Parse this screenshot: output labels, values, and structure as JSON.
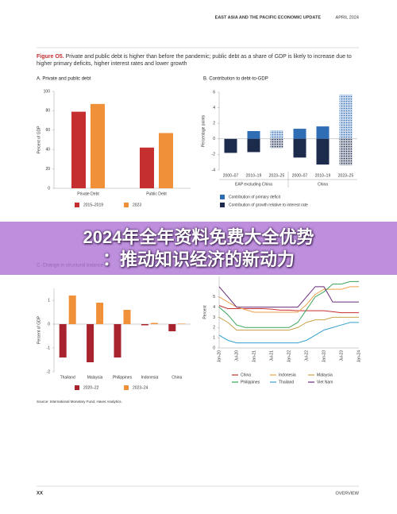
{
  "header": {
    "title": "EAST ASIA AND THE PACIFIC ECONOMIC UPDATE",
    "date": "APRIL 2024"
  },
  "figure": {
    "label": "Figure O5.",
    "caption": "Private and public debt is higher than before the pandemic; public debt as a share of GDP is likely to increase due to higher primary deficits, higher interest rates and lower growth"
  },
  "chart_data": [
    {
      "type": "bar",
      "title": "A. Private and public debt",
      "y_label": "Percent of GDP",
      "categories": [
        "Private Debt",
        "Public Debt"
      ],
      "series": [
        {
          "name": "2015–2019",
          "color": "#c62f2f",
          "values": [
            79,
            42
          ]
        },
        {
          "name": "2023",
          "color": "#f0913a",
          "values": [
            87,
            57
          ]
        }
      ],
      "ylim": [
        0,
        100
      ],
      "yticks": [
        0,
        20,
        40,
        60,
        80,
        100
      ]
    },
    {
      "type": "stacked_bar",
      "title": "B. Contribution to debt-to-GDP",
      "y_label": "Percentage points",
      "categories": [
        "2000–07",
        "2010–19",
        "2023–25",
        "2000–07",
        "2010–19",
        "2023–25"
      ],
      "groups": [
        "EAP excluding China",
        "China"
      ],
      "hatched": [
        false,
        false,
        true,
        false,
        false,
        true
      ],
      "series": [
        {
          "name": "Contribution of primary deficit",
          "color": "#2f6db5",
          "values": [
            0,
            1.0,
            1.1,
            1.3,
            1.6,
            5.7
          ]
        },
        {
          "name": "Contribution of growth relative to interest rate",
          "color": "#1c2b4c",
          "values": [
            -1.8,
            -1.7,
            -1.2,
            -2.4,
            -3.3,
            -3.4
          ]
        }
      ],
      "ylim": [
        -4,
        6
      ],
      "yticks": [
        -4,
        -2,
        0,
        2,
        4,
        6
      ]
    },
    {
      "type": "bar",
      "title": "C. Change in structural balance",
      "y_label": "Percent of GDP",
      "categories": [
        "Thailand",
        "Malaysia",
        "Philippines",
        "Indonesia",
        "China"
      ],
      "series": [
        {
          "name": "2020–22",
          "color": "#a8232d",
          "values": [
            -1.4,
            -1.6,
            -1.4,
            -0.05,
            -0.3
          ]
        },
        {
          "name": "2023–24",
          "color": "#f0913a",
          "values": [
            1.2,
            0.9,
            0.6,
            0.05,
            0.02
          ]
        }
      ],
      "ylim": [
        -2,
        1.5
      ],
      "yticks": [
        -2,
        -1,
        0,
        1
      ]
    },
    {
      "type": "line",
      "y_label": "Percent",
      "categories": [
        "Jan-20",
        null,
        "Jul-20",
        null,
        "Jan-21",
        null,
        "Jul-21",
        null,
        "Jan-22",
        null,
        "Jul-22",
        null,
        "Jan-23",
        null,
        "Jul-23",
        null,
        "Jan-24"
      ],
      "series": [
        {
          "name": "China",
          "color": "#c62f2f",
          "values": [
            4.15,
            3.85,
            3.85,
            3.85,
            3.85,
            3.85,
            3.8,
            3.7,
            3.7,
            3.65,
            3.65,
            3.65,
            3.65,
            3.55,
            3.45,
            3.45,
            3.45
          ]
        },
        {
          "name": "Indonesia",
          "color": "#f0a04b",
          "values": [
            5.0,
            4.5,
            4.0,
            3.75,
            3.5,
            3.5,
            3.5,
            3.5,
            3.5,
            3.5,
            4.25,
            5.25,
            5.75,
            5.75,
            5.75,
            6.0,
            6.0
          ]
        },
        {
          "name": "Malaysia",
          "color": "#c9a24a",
          "values": [
            3.0,
            2.5,
            1.75,
            1.75,
            1.75,
            1.75,
            1.75,
            1.75,
            1.75,
            2.0,
            2.5,
            2.75,
            2.75,
            3.0,
            3.0,
            3.0,
            3.0
          ]
        },
        {
          "name": "Philippines",
          "color": "#3aa55a",
          "values": [
            4.0,
            3.25,
            2.25,
            2.0,
            2.0,
            2.0,
            2.0,
            2.0,
            2.0,
            2.5,
            3.75,
            5.0,
            5.5,
            6.25,
            6.25,
            6.5,
            6.5
          ]
        },
        {
          "name": "Thailand",
          "color": "#36a0d0",
          "values": [
            1.25,
            0.75,
            0.5,
            0.5,
            0.5,
            0.5,
            0.5,
            0.5,
            0.5,
            0.5,
            0.75,
            1.25,
            1.75,
            2.0,
            2.25,
            2.5,
            2.5
          ]
        },
        {
          "name": "Viet Nam",
          "color": "#6b2c7a",
          "values": [
            6.0,
            5.0,
            4.0,
            4.0,
            4.0,
            4.0,
            4.0,
            4.0,
            4.0,
            4.0,
            5.0,
            6.0,
            6.0,
            4.5,
            4.5,
            4.5,
            4.5
          ]
        }
      ],
      "ylim": [
        0,
        7
      ],
      "yticks": [
        0,
        1,
        2,
        3,
        4,
        5
      ]
    }
  ],
  "source": "Source: International Monetary Fund, Haver Analytics.",
  "banner": {
    "lines": [
      "2024年全年资料免费大全优势",
      "：推动知识经济的新动力"
    ]
  },
  "footer": {
    "page": "XX",
    "section": "OVERVIEW"
  }
}
